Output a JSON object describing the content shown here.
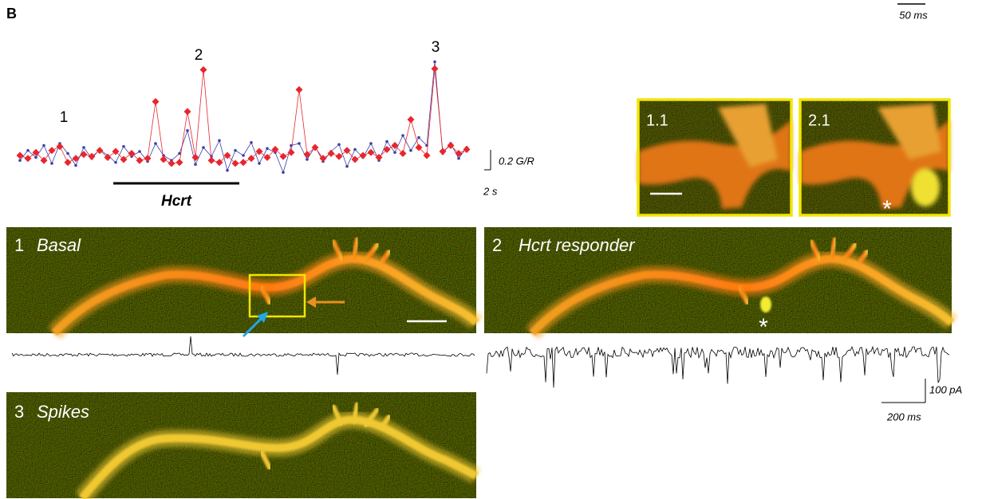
{
  "panel_label": "B",
  "top_scale_bar": {
    "label": "50 ms"
  },
  "trace": {
    "type": "line",
    "series": [
      {
        "color": "#e8262d",
        "marker": "diamond",
        "values": [
          1.0,
          0.97,
          1.03,
          0.95,
          1.05,
          1.09,
          0.93,
          0.97,
          1.01,
          0.99,
          1.05,
          0.98,
          1.04,
          0.96,
          1.02,
          0.95,
          0.97,
          1.54,
          0.96,
          0.92,
          0.93,
          1.44,
          0.98,
          1.86,
          0.95,
          0.93,
          1.0,
          0.92,
          0.93,
          0.97,
          1.04,
          0.98,
          1.06,
          0.99,
          1.03,
          1.66,
          1.01,
          1.08,
          0.97,
          1.02,
          0.99,
          1.05,
          0.96,
          1.0,
          1.03,
          0.98,
          1.06,
          1.1,
          1.02,
          1.36,
          1.08,
          1.0,
          1.87,
          1.04,
          1.1,
          1.02,
          1.06
        ]
      },
      {
        "color": "#3b3fa8",
        "marker": "dot",
        "values": [
          0.95,
          1.05,
          0.98,
          1.1,
          0.92,
          1.12,
          1.02,
          0.9,
          1.08,
          0.97,
          1.06,
          1.0,
          0.93,
          1.09,
          0.99,
          1.04,
          0.94,
          1.12,
          1.0,
          0.95,
          1.02,
          1.25,
          0.91,
          1.08,
          0.99,
          1.15,
          0.85,
          1.05,
          1.0,
          1.13,
          0.92,
          1.07,
          1.03,
          0.83,
          1.1,
          1.12,
          0.96,
          1.09,
          0.94,
          1.04,
          1.11,
          0.89,
          1.06,
          0.98,
          1.12,
          0.95,
          1.14,
          1.03,
          1.2,
          1.05,
          1.18,
          1.1,
          1.94,
          1.02,
          1.12,
          0.97,
          1.08
        ]
      }
    ],
    "peak_labels": [
      "1",
      "2",
      "3"
    ],
    "scale_bars": [
      {
        "value": 0.2,
        "label": "0.2 G/R"
      },
      {
        "value": 2,
        "label": "2 s"
      }
    ],
    "stimulus_label": "Hcrt"
  },
  "insets": [
    {
      "label": "1.1"
    },
    {
      "label": "2.1",
      "marker": "*"
    }
  ],
  "images": [
    {
      "number": "1",
      "label": "Basal"
    },
    {
      "number": "2",
      "label": "Hcrt responder",
      "marker": "*"
    },
    {
      "number": "3",
      "label": "Spikes"
    }
  ],
  "ephys_scale_bars": [
    "100 pA",
    "200 ms"
  ]
}
